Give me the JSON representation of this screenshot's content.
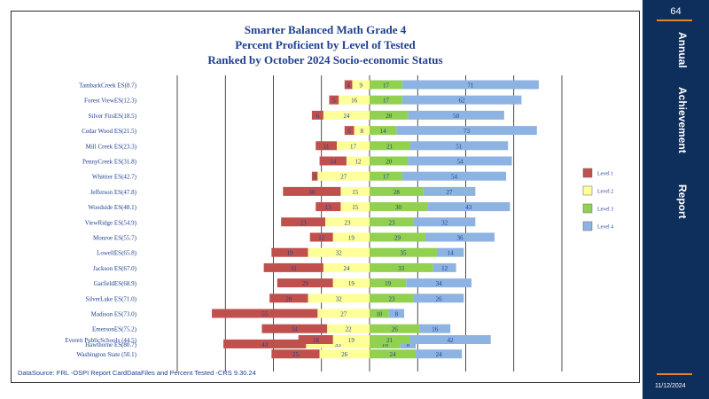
{
  "title_lines": [
    "Smarter Balanced Math Grade 4",
    "Percent Proficient by Level of Tested",
    "Ranked by October 2024 Socio-economic Status"
  ],
  "footnote": "DataSource:  FRL  -OSPI  Report CardDataFiles  and  Percent  Tested     -CRS  9.30.24",
  "sidebar": {
    "slide_number": "64",
    "heading_1": "Annual",
    "heading_2": "Achievement",
    "heading_3": "Report",
    "date": "11/12/2024"
  },
  "colors": {
    "level1": "#c0504d",
    "level2": "#ffff99",
    "level3": "#92d050",
    "level4": "#8db3e2",
    "sidebar": "#0e2e5c",
    "title": "#1f3f8f"
  },
  "chart_data": {
    "type": "bar",
    "orientation": "horizontal-diverging",
    "categories": [
      "TambarkCreek ES(8.7)",
      "Forest ViewES(12.3)",
      "Silver FirsES(18.5)",
      "Cedar Wood ES(21.5)",
      "Mill Creek ES(23.3)",
      "PennyCreek ES(31.8)",
      "Whittier ES(42.7)",
      "Jefferson ES(47.8)",
      "Woodside ES(48.1)",
      "ViewRidge ES(54.9)",
      "Monroe ES(55.7)",
      "LowellES(65.8)",
      "Jackson ES(67.0)",
      "GarfieldES(68.9)",
      "SilverLake ES(71.0)",
      "Madison ES(73.0)",
      "EmersonES(75.2)",
      "Hawthorne ES(80.7)",
      "Everett PublicSchools (44.5)",
      "Washington State (50.1)"
    ],
    "series": [
      {
        "name": "Level 1",
        "values": [
          4,
          5,
          6,
          5,
          11,
          14,
          3,
          30,
          13,
          23,
          12,
          19,
          31,
          29,
          20,
          55,
          34,
          43,
          18,
          25
        ]
      },
      {
        "name": "Level 2",
        "values": [
          9,
          16,
          24,
          8,
          17,
          12,
          27,
          15,
          15,
          23,
          19,
          32,
          24,
          19,
          32,
          27,
          22,
          33,
          19,
          26
        ]
      },
      {
        "name": "Level 3",
        "values": [
          17,
          17,
          20,
          14,
          21,
          20,
          17,
          28,
          30,
          23,
          29,
          35,
          33,
          19,
          23,
          10,
          26,
          16,
          21,
          24
        ]
      },
      {
        "name": "Level 4",
        "values": [
          71,
          62,
          50,
          73,
          51,
          54,
          54,
          27,
          43,
          32,
          36,
          14,
          12,
          34,
          26,
          8,
          16,
          8,
          42,
          24
        ]
      }
    ],
    "grid": true,
    "legend_position": "right"
  }
}
